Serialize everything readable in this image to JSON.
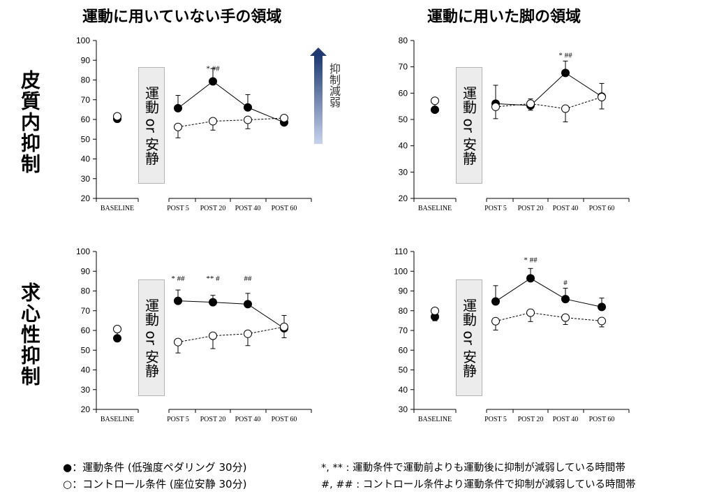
{
  "titles": {
    "col_left": "運動に用いていない手の領域",
    "col_right": "運動に用いた脚の領域",
    "row_top": "皮質内抑制",
    "row_bottom": "求心性抑制"
  },
  "exercise_box_label": "運動 or 安静",
  "arrow_label": "抑制減弱",
  "legend": {
    "filled_symbol": "●",
    "filled_text": "：運動条件 (低強度ペダリング 30分)",
    "open_symbol": "○",
    "open_text": "：コントロール条件 (座位安静 30分)",
    "star_note": "*, ** : 運動条件で運動前よりも運動後に抑制が減弱している時間帯",
    "hash_note": "#, ## : コントロール条件より運動条件で抑制が減弱している時間帯"
  },
  "colors": {
    "line": "#000000",
    "axis": "#000000",
    "box": "#ececec",
    "arrow_top": "#1f3a73",
    "arrow_bottom": "#c7d3ec"
  },
  "chart_data": [
    {
      "type": "line",
      "title": "運動に用いていない手の領域 / 皮質内抑制",
      "categories": [
        "BASELINE",
        "POST 5",
        "POST 20",
        "POST 40",
        "POST 60"
      ],
      "ylim": [
        20,
        100
      ],
      "yticks": [
        20,
        30,
        40,
        50,
        60,
        70,
        80,
        90,
        100
      ],
      "series": [
        {
          "name": "運動条件",
          "marker": "filled",
          "values": [
            60.3,
            65.7,
            79.3,
            66.1,
            58.5
          ],
          "errors": [
            2.5,
            6.5,
            6.5,
            6.5,
            3.5
          ]
        },
        {
          "name": "コントロール条件",
          "marker": "open",
          "values": [
            61.6,
            56.2,
            59.1,
            59.8,
            60.7
          ],
          "errors": [
            2.5,
            5.5,
            4.5,
            4.5,
            3.0
          ]
        }
      ],
      "annotations": [
        {
          "category": "POST 20",
          "text": "* ##",
          "y": 86
        }
      ]
    },
    {
      "type": "line",
      "title": "運動に用いた脚の領域 / 皮質内抑制",
      "categories": [
        "BASELINE",
        "POST 5",
        "POST 20",
        "POST 40",
        "POST 60"
      ],
      "ylim": [
        20,
        80
      ],
      "yticks": [
        20,
        30,
        40,
        50,
        60,
        70,
        80
      ],
      "series": [
        {
          "name": "運動条件",
          "marker": "filled",
          "values": [
            53.7,
            56.0,
            55.3,
            67.7,
            58.7
          ],
          "errors": [
            4.5,
            7.0,
            2.5,
            4.5,
            5.0
          ]
        },
        {
          "name": "コントロール条件",
          "marker": "open",
          "values": [
            57.1,
            54.8,
            56.0,
            54.1,
            58.5
          ],
          "errors": [
            4.2,
            4.5,
            2.5,
            5.0,
            4.5
          ]
        }
      ],
      "annotations": [
        {
          "category": "POST 40",
          "text": "* ##",
          "y": 74.5
        }
      ]
    },
    {
      "type": "line",
      "title": "運動に用いていない手の領域 / 求心性抑制",
      "categories": [
        "BASELINE",
        "POST 5",
        "POST 20",
        "POST 40",
        "POST 60"
      ],
      "ylim": [
        20,
        100
      ],
      "yticks": [
        20,
        30,
        40,
        50,
        60,
        70,
        80,
        90,
        100
      ],
      "series": [
        {
          "name": "運動条件",
          "marker": "filled",
          "values": [
            56.0,
            75.0,
            74.3,
            73.3,
            61.1
          ],
          "errors": [
            3.0,
            5.5,
            3.5,
            5.5,
            6.5
          ]
        },
        {
          "name": "コントロール条件",
          "marker": "open",
          "values": [
            60.7,
            54.1,
            57.3,
            58.3,
            61.8
          ],
          "errors": [
            4.5,
            5.5,
            6.5,
            6.0,
            5.5
          ]
        }
      ],
      "annotations": [
        {
          "category": "POST 5",
          "text": "* ##",
          "y": 86.5
        },
        {
          "category": "POST 20",
          "text": "** #",
          "y": 86.5
        },
        {
          "category": "POST 40",
          "text": "##",
          "y": 86.5
        }
      ]
    },
    {
      "type": "line",
      "title": "運動に用いた脚の領域 / 求心性抑制",
      "categories": [
        "BASELINE",
        "POST 5",
        "POST 20",
        "POST 40",
        "POST 60"
      ],
      "ylim": [
        30,
        110
      ],
      "yticks": [
        30,
        40,
        50,
        60,
        70,
        80,
        90,
        100,
        110
      ],
      "series": [
        {
          "name": "運動条件",
          "marker": "filled",
          "values": [
            76.9,
            84.7,
            96.4,
            85.9,
            81.9
          ],
          "errors": [
            3.5,
            8.0,
            5.0,
            5.5,
            4.5
          ]
        },
        {
          "name": "コントロール条件",
          "marker": "open",
          "values": [
            79.9,
            74.7,
            79.0,
            76.5,
            74.8
          ],
          "errors": [
            5.0,
            4.5,
            4.5,
            3.5,
            3.0
          ]
        }
      ],
      "annotations": [
        {
          "category": "POST 20",
          "text": "* ##",
          "y": 106
        },
        {
          "category": "POST 40",
          "text": "#",
          "y": 94.5
        }
      ]
    }
  ]
}
